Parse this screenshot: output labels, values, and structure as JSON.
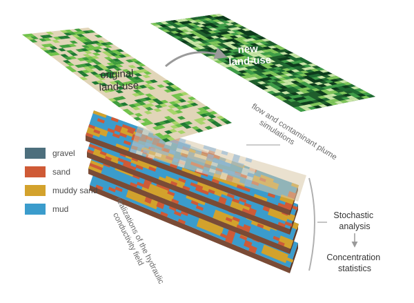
{
  "labels": {
    "original": [
      "original",
      "land-use"
    ],
    "new": [
      "new",
      "land-use"
    ],
    "flow": [
      "flow and contaminant plume",
      "simulations"
    ],
    "realizations": [
      "realizations of the hydraulic",
      "conductivity field"
    ],
    "stochastic": [
      "Stochastic",
      "analysis"
    ],
    "concentration": [
      "Concentration",
      "statistics"
    ]
  },
  "legend": {
    "items": [
      {
        "label": "gravel",
        "color": "#4d6f7d"
      },
      {
        "label": "sand",
        "color": "#cf5a36"
      },
      {
        "label": "muddy sand",
        "color": "#d3a22c"
      },
      {
        "label": "mud",
        "color": "#3b9ccc"
      }
    ]
  },
  "colors": {
    "land_background": "#e1d5b8",
    "land_greens": [
      "#6fc24a",
      "#3e9d3c",
      "#1f7a32",
      "#a6d468"
    ],
    "new_land_greens": [
      "#0d3b1c",
      "#1f6b32",
      "#3f9e48",
      "#7fc65a",
      "#c8e6a6"
    ],
    "soil_blue": "#3b9ccc",
    "soil_orange": "#cf5a36",
    "soil_yellow": "#d3a22c",
    "soil_side": "#7a4b36",
    "text_dark": "#333333",
    "text_gray": "#6a6a6a"
  }
}
